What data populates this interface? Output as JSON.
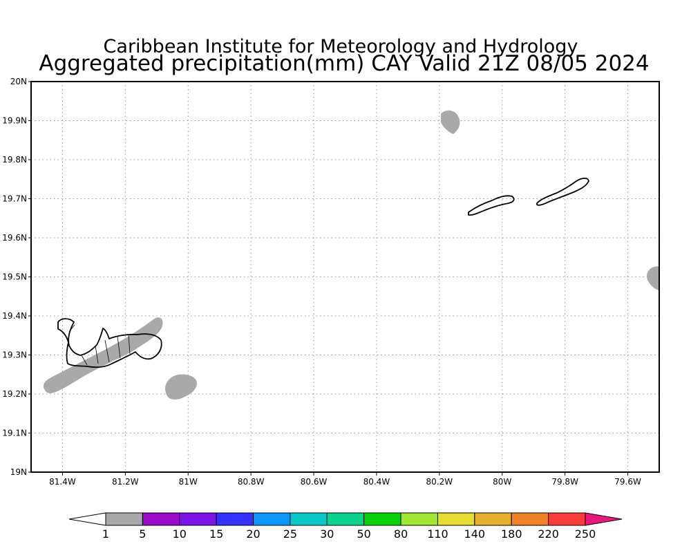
{
  "title": {
    "line1": "Caribbean Institute for Meteorology and Hydrology",
    "line2": "Aggregated precipitation(mm) CAY Valid 21Z 08/05 2024"
  },
  "map": {
    "lon_range": [
      -81.5,
      -79.5
    ],
    "lat_range": [
      19.0,
      20.0
    ],
    "grid": true,
    "x_ticks": [
      {
        "value": -81.4,
        "label": "81.4W"
      },
      {
        "value": -81.2,
        "label": "81.2W"
      },
      {
        "value": -81.0,
        "label": "81W"
      },
      {
        "value": -80.8,
        "label": "80.8W"
      },
      {
        "value": -80.6,
        "label": "80.6W"
      },
      {
        "value": -80.4,
        "label": "80.4W"
      },
      {
        "value": -80.2,
        "label": "80.2W"
      },
      {
        "value": -80.0,
        "label": "80W"
      },
      {
        "value": -79.8,
        "label": "79.8W"
      },
      {
        "value": -79.6,
        "label": "79.6W"
      }
    ],
    "y_ticks": [
      {
        "value": 19.0,
        "label": "19N"
      },
      {
        "value": 19.1,
        "label": "19.1N"
      },
      {
        "value": 19.2,
        "label": "19.2N"
      },
      {
        "value": 19.3,
        "label": "19.3N"
      },
      {
        "value": 19.4,
        "label": "19.4N"
      },
      {
        "value": 19.5,
        "label": "19.5N"
      },
      {
        "value": 19.6,
        "label": "19.6N"
      },
      {
        "value": 19.7,
        "label": "19.7N"
      },
      {
        "value": 19.8,
        "label": "19.8N"
      },
      {
        "value": 19.9,
        "label": "19.9N"
      },
      {
        "value": 20.0,
        "label": "20N"
      }
    ]
  },
  "colorbar": {
    "under_color": "#ffffff",
    "over_color": "#e8197d",
    "bins": [
      {
        "color": "#a9a9a9"
      },
      {
        "color": "#9a0ac8"
      },
      {
        "color": "#7a14e6"
      },
      {
        "color": "#3232fa"
      },
      {
        "color": "#0a96fa"
      },
      {
        "color": "#0ac8c8"
      },
      {
        "color": "#0ad28c"
      },
      {
        "color": "#0ad20a"
      },
      {
        "color": "#a0e632"
      },
      {
        "color": "#e6dc32"
      },
      {
        "color": "#e6af2d"
      },
      {
        "color": "#f08228"
      },
      {
        "color": "#fa3c3c"
      }
    ],
    "labels": [
      "1",
      "5",
      "10",
      "15",
      "20",
      "25",
      "30",
      "50",
      "80",
      "110",
      "140",
      "180",
      "220",
      "250"
    ]
  }
}
